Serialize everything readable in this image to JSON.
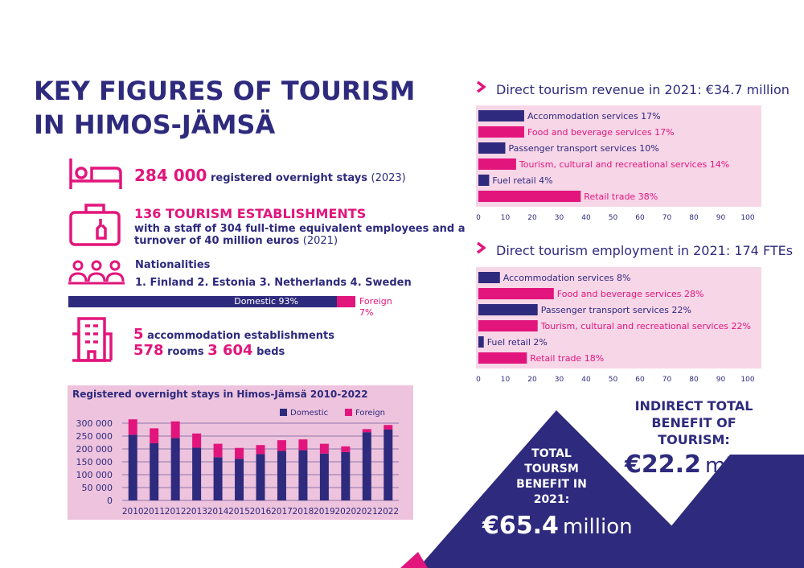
{
  "title": {
    "line1": "KEY FIGURES OF TOURISM",
    "line2": "IN HIMOS-JÄMSÄ"
  },
  "colors": {
    "navy": "#2e2a7d",
    "pink": "#e2157c",
    "panel": "#f7d6e8",
    "chart_bg": "#eec3dd"
  },
  "stats": {
    "overnight": {
      "icon": "bed-icon",
      "number": "284 000",
      "text": "registered overnight stays",
      "year": "(2023)"
    },
    "establishments": {
      "icon": "suitcase-icon",
      "heading": "136 TOURISM ESTABLISHMENTS",
      "line1": "with a staff of 304 full-time equivalent employees and a",
      "line2": "turnover of 40 million euros",
      "year": "(2021)"
    },
    "nationalities": {
      "icon": "people-icon",
      "heading": "Nationalities",
      "list": "1. Finland 2. Estonia 3. Netherlands 4. Sweden",
      "domestic_label": "Domestic 93%",
      "foreign_label": "Foreign 7%",
      "domestic_share": 93
    },
    "accommodation": {
      "icon": "building-icon",
      "num1": "5",
      "text1": "accommodation establishments",
      "num2": "578",
      "text2": "rooms",
      "num3": "3 604",
      "text3": "beds"
    }
  },
  "benefit": {
    "total_label": [
      "TOTAL",
      "TOURSM",
      "BENEFIT IN 2021:"
    ],
    "total_value": "€65.4",
    "total_unit": "million",
    "indirect_label": [
      "INDIRECT TOTAL",
      "BENEFIT OF",
      "TOURISM:"
    ],
    "indirect_value": "€22.2",
    "indirect_unit": "million"
  },
  "chart_data": [
    {
      "type": "bar",
      "title": "Registered overnight stays in Himos-Jämsä 2010-2022",
      "stacked": true,
      "categories": [
        "2010",
        "2011",
        "2012",
        "2013",
        "2014",
        "2015",
        "2016",
        "2017",
        "2018",
        "2019",
        "2020",
        "2021",
        "2022"
      ],
      "series": [
        {
          "name": "Domestic",
          "color": "#2e2a7d",
          "values": [
            255000,
            222000,
            242000,
            205000,
            168000,
            162000,
            180000,
            192000,
            195000,
            182000,
            188000,
            265000,
            275000
          ]
        },
        {
          "name": "Foreign",
          "color": "#e2157c",
          "values": [
            60000,
            58000,
            65000,
            55000,
            52000,
            42000,
            35000,
            42000,
            42000,
            38000,
            22000,
            12000,
            18000
          ]
        }
      ],
      "yticks": [
        "300 000",
        "250 000",
        "200 000",
        "150 000",
        "100 000",
        "50 000",
        "0"
      ],
      "ylim": [
        0,
        300000
      ],
      "legend": "top-right"
    },
    {
      "type": "bar",
      "orientation": "horizontal",
      "title": "Direct tourism revenue in 2021: €34.7 million",
      "categories": [
        "Accommodation services 17%",
        "Food and beverage services 17%",
        "Passenger transport services 10%",
        "Tourism, cultural and recreational services 14%",
        "Fuel retail 4%",
        "Retail trade 38%"
      ],
      "values": [
        17,
        17,
        10,
        14,
        4,
        38
      ],
      "colors": [
        "#2e2a7d",
        "#e2157c",
        "#2e2a7d",
        "#e2157c",
        "#2e2a7d",
        "#e2157c"
      ],
      "xticks": [
        "0",
        "10",
        "20",
        "30",
        "40",
        "50",
        "60",
        "70",
        "80",
        "90",
        "100"
      ],
      "xlim": [
        0,
        100
      ]
    },
    {
      "type": "bar",
      "orientation": "horizontal",
      "title": "Direct tourism employment in 2021: 174 FTEs",
      "categories": [
        "Accommodation services 8%",
        "Food and beverage services 28%",
        "Passenger transport services 22%",
        "Tourism, cultural and recreational services 22%",
        "Fuel retail 2%",
        "Retail trade 18%"
      ],
      "values": [
        8,
        28,
        22,
        22,
        2,
        18
      ],
      "colors": [
        "#2e2a7d",
        "#e2157c",
        "#2e2a7d",
        "#e2157c",
        "#2e2a7d",
        "#e2157c"
      ],
      "xticks": [
        "0",
        "10",
        "20",
        "30",
        "40",
        "50",
        "60",
        "70",
        "80",
        "90",
        "100"
      ],
      "xlim": [
        0,
        100
      ]
    }
  ]
}
